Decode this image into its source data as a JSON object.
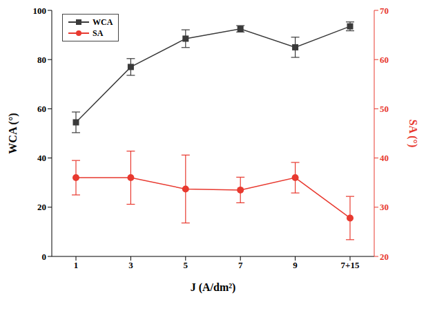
{
  "chart_data": {
    "type": "line",
    "x_label": "J (A/dm²)",
    "y_label": "WCA (°)",
    "y2_label": "SA (°)",
    "categories": [
      "1",
      "3",
      "5",
      "7",
      "9",
      "7+15"
    ],
    "ylim": [
      0,
      100
    ],
    "yticks": [
      0,
      20,
      40,
      60,
      80,
      100
    ],
    "y2lim": [
      20,
      70
    ],
    "y2ticks": [
      20,
      30,
      40,
      50,
      60,
      70
    ],
    "grid": false,
    "legend": "top-left",
    "series": [
      {
        "name": "WCA",
        "color": "#3a3a3a",
        "marker": "square",
        "values": [
          54.5,
          77,
          88.5,
          92.5,
          85,
          93.5
        ],
        "errors": [
          4.2,
          3.4,
          3.6,
          1.3,
          4.1,
          1.8
        ]
      },
      {
        "name": "SA",
        "color": "#e8392f",
        "marker": "circle",
        "axis": "y2",
        "values": [
          36,
          36,
          33.7,
          33.5,
          36,
          27.8
        ],
        "errors": [
          3.5,
          5.4,
          6.9,
          2.6,
          3.1,
          4.4
        ]
      }
    ]
  }
}
